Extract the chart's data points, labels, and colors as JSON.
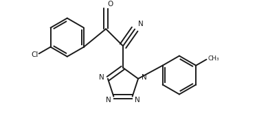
{
  "background": "#ffffff",
  "line_color": "#1a1a1a",
  "lw": 1.4,
  "dbo": 0.012,
  "figsize": [
    3.74,
    1.78
  ],
  "dpi": 100,
  "xlim": [
    0.02,
    0.98
  ],
  "ylim": [
    0.02,
    0.98
  ]
}
